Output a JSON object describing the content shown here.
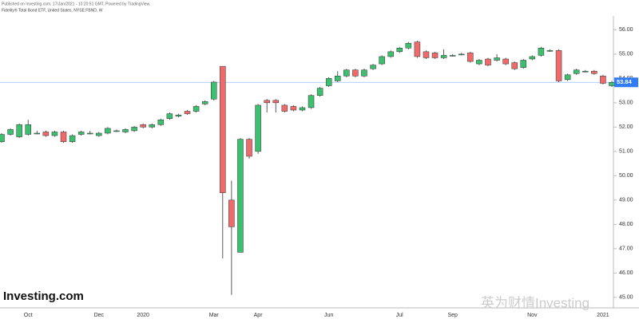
{
  "chart_data": {
    "type": "candlestick",
    "published": "Published on Investing.com, 17/Jan/2021 - 10:20:51 GMT, Powered by TradingView.",
    "title": "Fidelity® Total Bond ETF, United States, NYSE:FBND, W",
    "logo": "Investing.com",
    "watermark": "英为财情Investing",
    "categories": [
      null,
      null,
      null,
      "Oct",
      null,
      null,
      null,
      null,
      null,
      null,
      null,
      "Dec",
      null,
      null,
      null,
      null,
      "2020",
      null,
      null,
      null,
      null,
      null,
      null,
      null,
      "Mar",
      null,
      null,
      null,
      null,
      "Apr",
      null,
      null,
      null,
      null,
      null,
      null,
      null,
      "Jun",
      null,
      null,
      null,
      null,
      null,
      null,
      null,
      "Jul",
      null,
      null,
      null,
      null,
      null,
      "Sep",
      null,
      null,
      null,
      null,
      null,
      null,
      null,
      null,
      "Nov",
      null,
      null,
      null,
      null,
      null,
      null,
      null,
      "2021",
      null
    ],
    "open": [
      51.4,
      51.7,
      51.6,
      51.7,
      51.75,
      51.8,
      51.65,
      51.8,
      51.4,
      51.7,
      51.75,
      51.65,
      51.75,
      51.85,
      51.8,
      51.85,
      52.1,
      52.0,
      52.1,
      52.35,
      52.45,
      52.65,
      52.65,
      52.95,
      53.15,
      54.5,
      49.0,
      46.85,
      51.5,
      51.0,
      53.1,
      53.1,
      52.9,
      52.85,
      52.7,
      52.8,
      53.3,
      53.7,
      53.9,
      54.1,
      54.35,
      54.1,
      54.4,
      54.6,
      54.9,
      55.1,
      55.25,
      55.5,
      55.1,
      55.05,
      54.85,
      54.95,
      55.0,
      55.05,
      54.6,
      54.8,
      54.75,
      54.8,
      54.65,
      54.45,
      54.8,
      54.95,
      55.15,
      55.15,
      53.95,
      54.2,
      54.3,
      54.3,
      54.1,
      53.7
    ],
    "high": [
      51.75,
      51.95,
      52.15,
      52.3,
      51.85,
      51.85,
      51.85,
      51.85,
      51.7,
      51.85,
      51.85,
      51.8,
      52.0,
      51.9,
      51.95,
      52.05,
      52.15,
      52.15,
      52.35,
      52.6,
      52.55,
      52.7,
      52.9,
      53.1,
      53.9,
      54.5,
      49.8,
      51.55,
      51.55,
      52.95,
      53.15,
      53.15,
      52.95,
      52.9,
      52.85,
      53.35,
      53.65,
      54.05,
      54.3,
      54.4,
      54.4,
      54.4,
      54.6,
      54.95,
      55.15,
      55.3,
      55.5,
      55.55,
      55.15,
      55.1,
      55.2,
      55.0,
      55.05,
      55.1,
      54.8,
      54.85,
      55.0,
      54.85,
      54.7,
      54.8,
      54.95,
      55.3,
      55.2,
      55.2,
      54.2,
      54.4,
      54.35,
      54.35,
      54.15,
      53.9
    ],
    "low": [
      51.35,
      51.65,
      51.55,
      51.65,
      51.7,
      51.6,
      51.6,
      51.35,
      51.35,
      51.65,
      51.7,
      51.6,
      51.7,
      51.8,
      51.75,
      51.8,
      51.95,
      51.95,
      52.05,
      52.3,
      52.4,
      52.5,
      52.6,
      52.9,
      53.1,
      46.6,
      45.1,
      46.85,
      50.7,
      50.9,
      52.6,
      52.6,
      52.6,
      52.65,
      52.65,
      52.75,
      53.25,
      53.65,
      53.85,
      54.05,
      54.05,
      54.05,
      54.35,
      54.55,
      54.85,
      55.05,
      55.2,
      54.85,
      54.8,
      54.8,
      54.8,
      54.9,
      54.95,
      54.65,
      54.55,
      54.5,
      54.7,
      54.55,
      54.35,
      54.4,
      54.75,
      54.9,
      55.1,
      53.85,
      53.9,
      54.15,
      54.25,
      54.15,
      53.75,
      53.65
    ],
    "close": [
      51.7,
      51.9,
      52.1,
      52.1,
      51.75,
      51.65,
      51.8,
      51.4,
      51.65,
      51.8,
      51.75,
      51.75,
      51.95,
      51.85,
      51.9,
      52.0,
      52.0,
      52.1,
      52.3,
      52.55,
      52.5,
      52.55,
      52.85,
      53.05,
      53.85,
      49.3,
      47.9,
      51.5,
      50.8,
      52.9,
      53.0,
      53.0,
      52.65,
      52.7,
      52.8,
      53.3,
      53.6,
      54.0,
      54.1,
      54.35,
      54.1,
      54.35,
      54.55,
      54.9,
      55.1,
      55.25,
      55.45,
      54.9,
      54.85,
      54.85,
      54.95,
      54.95,
      55.0,
      54.7,
      54.75,
      54.55,
      54.85,
      54.6,
      54.4,
      54.75,
      54.9,
      55.25,
      55.15,
      53.9,
      54.15,
      54.35,
      54.3,
      54.2,
      53.8,
      53.84
    ],
    "up_color": "#3cbf6e",
    "down_color": "#ef6b6b",
    "last_price": 53.84,
    "last_price_color": "#2f7cf6",
    "ylim": [
      44.6,
      56.8
    ],
    "yticks": [
      {
        "value": 45,
        "label": "45.00"
      },
      {
        "value": 46,
        "label": "46.00"
      },
      {
        "value": 47,
        "label": "47.00"
      },
      {
        "value": 48,
        "label": "48.00"
      },
      {
        "value": 49,
        "label": "49.00"
      },
      {
        "value": 50,
        "label": "50.00"
      },
      {
        "value": 51,
        "label": "51.00"
      },
      {
        "value": 52,
        "label": "52.00"
      },
      {
        "value": 53,
        "label": "53.00"
      },
      {
        "value": 54,
        "label": "54.00"
      },
      {
        "value": 55,
        "label": "55.00"
      },
      {
        "value": 56,
        "label": "56.00"
      }
    ],
    "grid": false
  }
}
